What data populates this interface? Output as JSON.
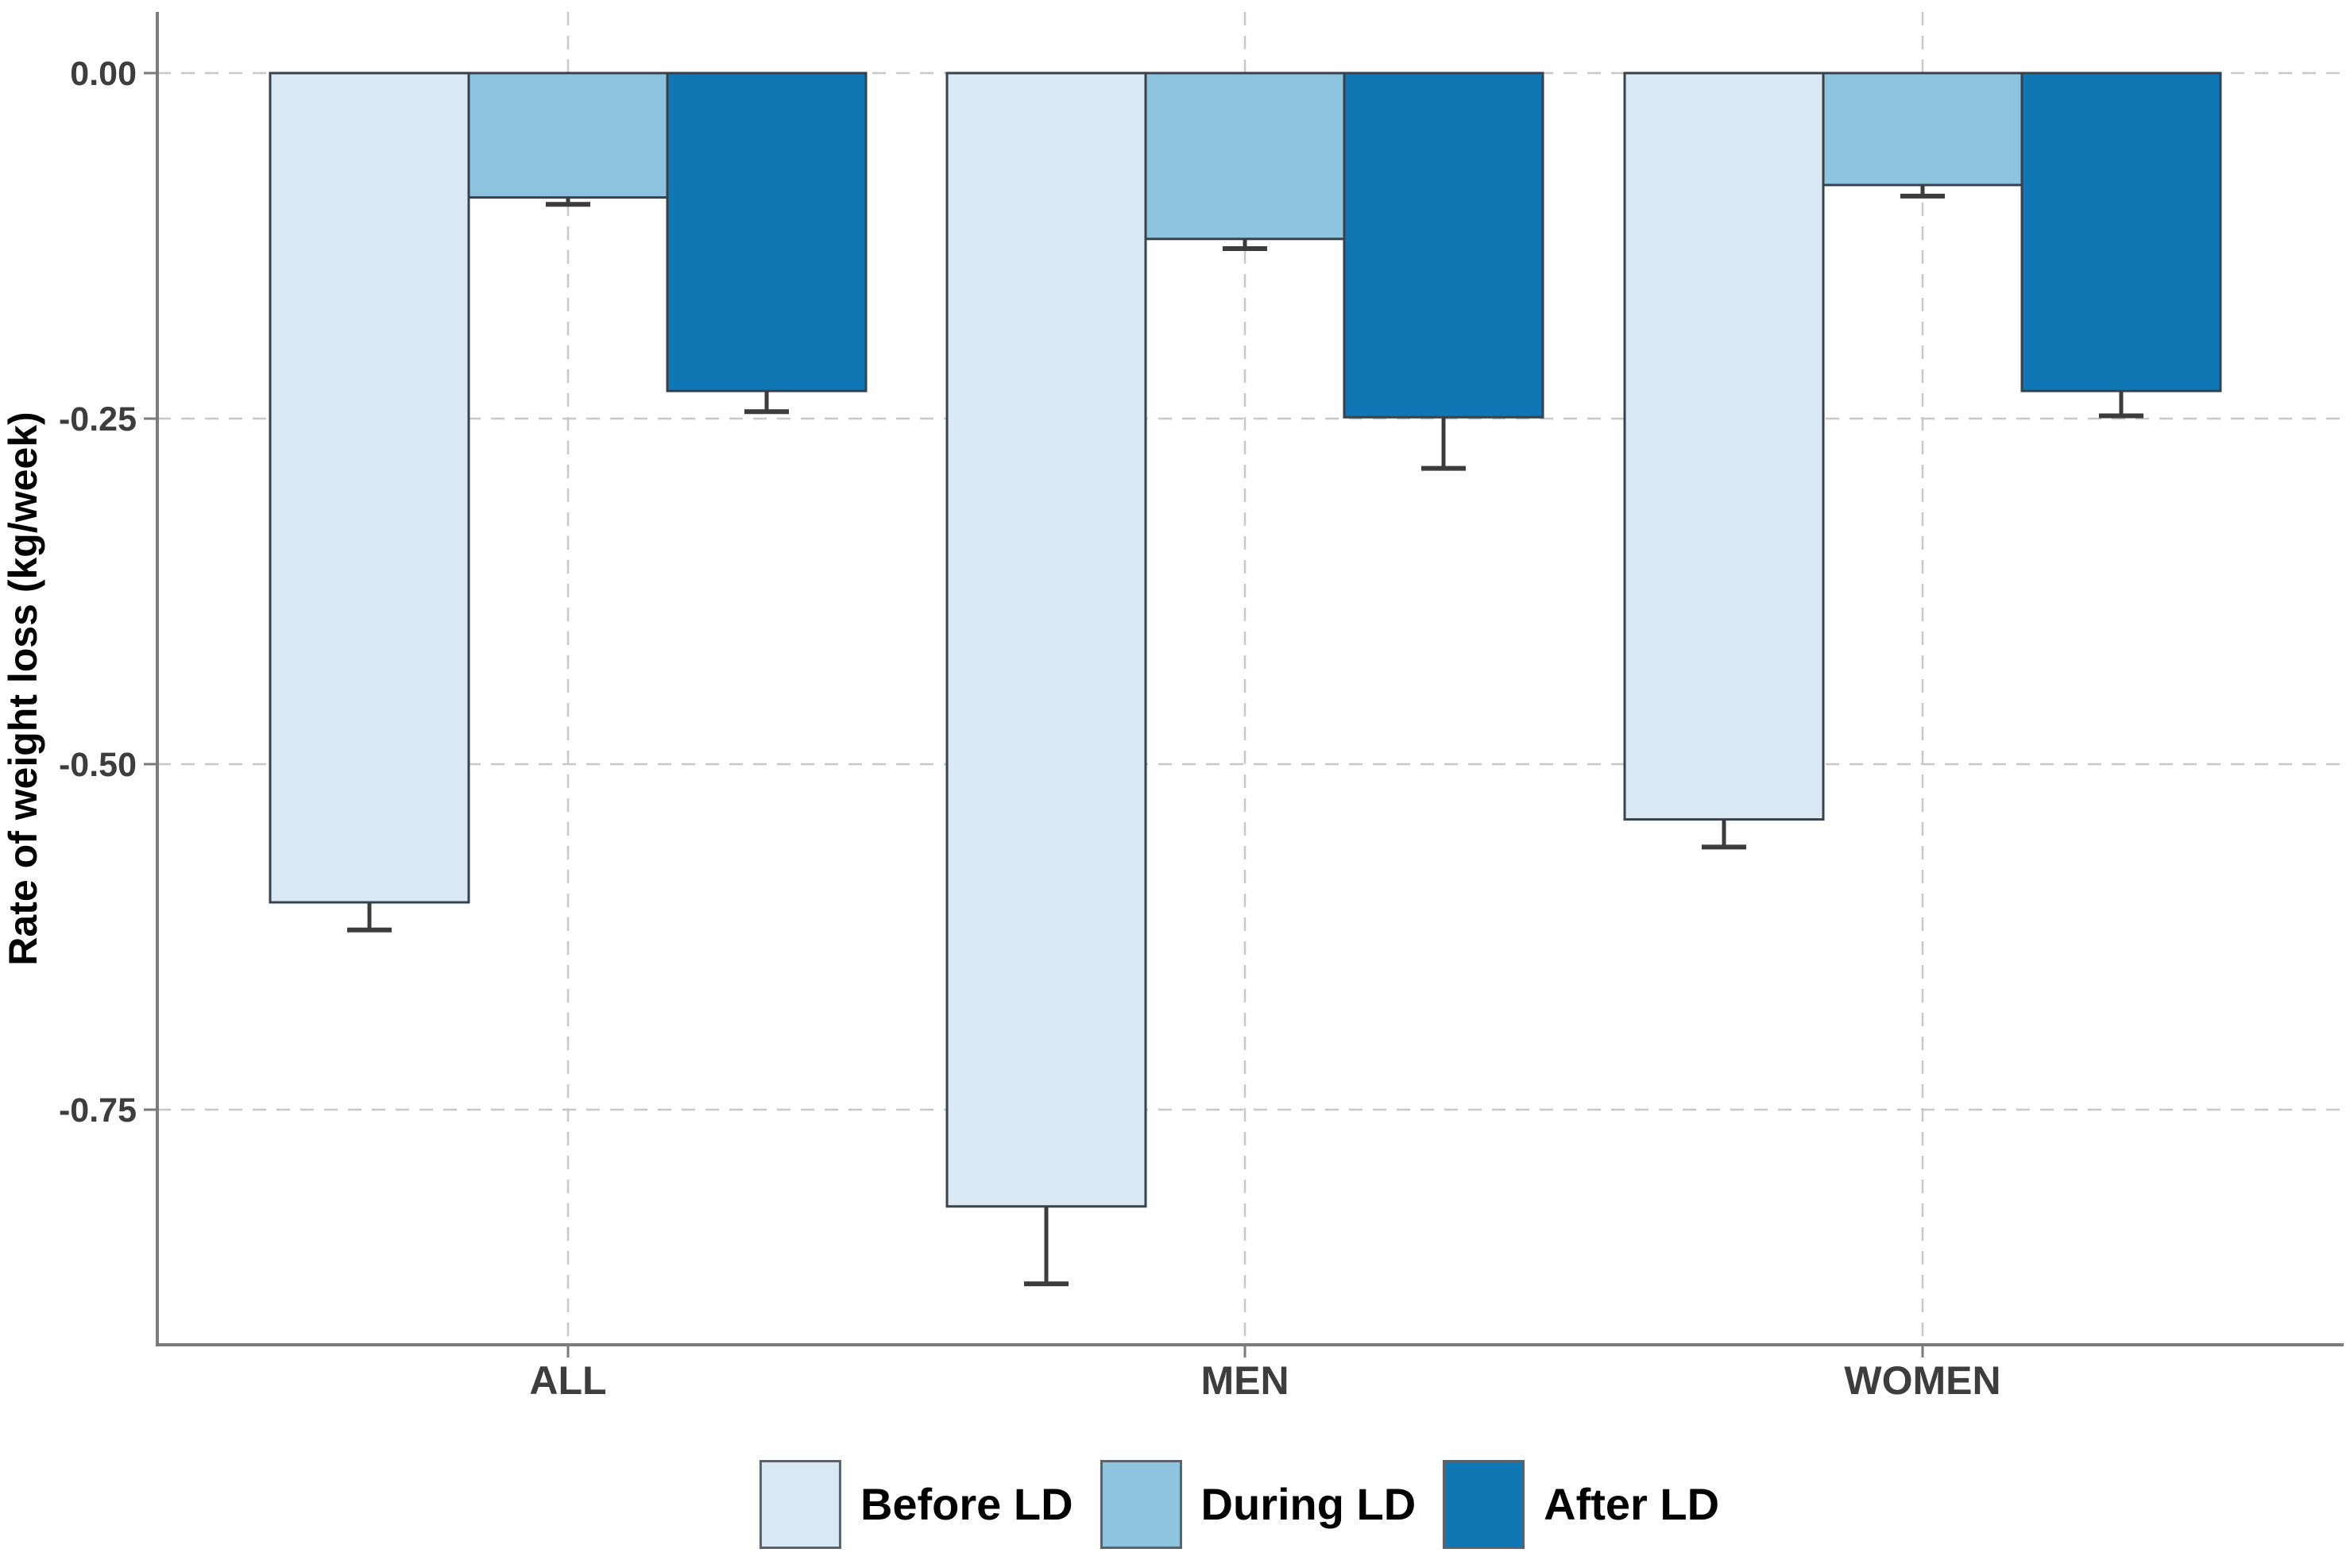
{
  "chart_data": {
    "type": "bar",
    "orientation": "vertical-negative",
    "title": "",
    "xlabel": "",
    "ylabel": "Rate of weight loss (kg/week)",
    "categories": [
      "ALL",
      "MEN",
      "WOMEN"
    ],
    "series": [
      {
        "name": "Before LD",
        "color": "#dae8f4",
        "values": [
          -0.6,
          -0.82,
          -0.54
        ],
        "error_caps": [
          -0.62,
          -0.876,
          -0.56
        ]
      },
      {
        "name": "During LD",
        "color": "#8fc4de",
        "values": [
          -0.09,
          -0.12,
          -0.081
        ],
        "error_caps": [
          -0.095,
          -0.127,
          -0.089
        ]
      },
      {
        "name": "After LD",
        "color": "#0e77b4",
        "values": [
          -0.23,
          -0.249,
          -0.23
        ],
        "error_caps": [
          -0.245,
          -0.286,
          -0.248
        ]
      }
    ],
    "y_ticks": [
      {
        "label": "0.00",
        "value": 0
      },
      {
        "label": "-0.25",
        "value": -0.25
      },
      {
        "label": "-0.50",
        "value": -0.5
      },
      {
        "label": "-0.75",
        "value": -0.75
      }
    ],
    "ylim": [
      0,
      -0.92
    ],
    "grid": "dashed",
    "legend_position": "bottom"
  },
  "style": {
    "background": "#ffffff",
    "bar_border_color": "#37424c",
    "error_bar_color": "#3c3c3c",
    "grid_color": "#c8c8c8",
    "axis_color": "#7b7b7b",
    "tick_label_color": "#3d3d3d",
    "category_label_color": "#3d3d3d",
    "axis_title_color": "#000000"
  }
}
